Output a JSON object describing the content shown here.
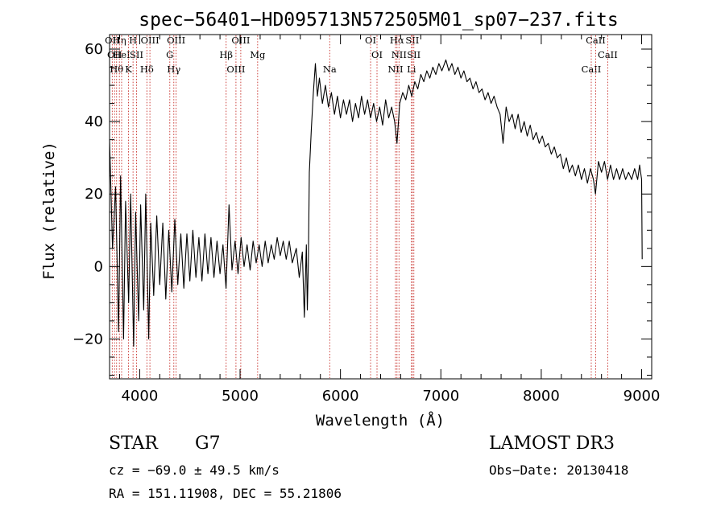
{
  "chart_data": {
    "type": "line",
    "title": "spec−56401−HD095713N572505M01_sp07−237.fits",
    "xlabel": "Wavelength (Å)",
    "ylabel": "Flux (relative)",
    "xlim": [
      3700,
      9100
    ],
    "ylim": [
      -31,
      64
    ],
    "xticks": [
      4000,
      5000,
      6000,
      7000,
      8000,
      9000
    ],
    "xtick_labels": [
      "4000",
      "5000",
      "6000",
      "7000",
      "8000",
      "9000"
    ],
    "yticks": [
      -20,
      0,
      20,
      40,
      60
    ],
    "ytick_labels": [
      "−20",
      "0",
      "20",
      "40",
      "60"
    ],
    "grid": false,
    "series": [
      {
        "points": [
          [
            3700,
            35
          ],
          [
            3730,
            5
          ],
          [
            3760,
            22
          ],
          [
            3790,
            -18
          ],
          [
            3810,
            25
          ],
          [
            3840,
            -20
          ],
          [
            3860,
            18
          ],
          [
            3890,
            -10
          ],
          [
            3910,
            20
          ],
          [
            3940,
            -22
          ],
          [
            3960,
            15
          ],
          [
            3990,
            -15
          ],
          [
            4010,
            17
          ],
          [
            4040,
            -12
          ],
          [
            4060,
            20
          ],
          [
            4090,
            -20
          ],
          [
            4110,
            12
          ],
          [
            4140,
            -8
          ],
          [
            4170,
            14
          ],
          [
            4200,
            -5
          ],
          [
            4230,
            12
          ],
          [
            4260,
            -9
          ],
          [
            4290,
            10
          ],
          [
            4320,
            -7
          ],
          [
            4350,
            13
          ],
          [
            4380,
            -5
          ],
          [
            4410,
            9
          ],
          [
            4440,
            -6
          ],
          [
            4470,
            9
          ],
          [
            4500,
            -4
          ],
          [
            4530,
            10
          ],
          [
            4560,
            -3
          ],
          [
            4590,
            8
          ],
          [
            4620,
            -4
          ],
          [
            4650,
            9
          ],
          [
            4680,
            -2
          ],
          [
            4710,
            8
          ],
          [
            4740,
            -3
          ],
          [
            4770,
            7
          ],
          [
            4800,
            -2
          ],
          [
            4830,
            6
          ],
          [
            4860,
            -6
          ],
          [
            4890,
            17
          ],
          [
            4920,
            -1
          ],
          [
            4950,
            7
          ],
          [
            4980,
            -2
          ],
          [
            5010,
            8
          ],
          [
            5040,
            0
          ],
          [
            5070,
            6
          ],
          [
            5100,
            -1
          ],
          [
            5130,
            7
          ],
          [
            5160,
            1
          ],
          [
            5190,
            6
          ],
          [
            5220,
            0
          ],
          [
            5250,
            7
          ],
          [
            5280,
            1
          ],
          [
            5310,
            6
          ],
          [
            5340,
            2
          ],
          [
            5370,
            8
          ],
          [
            5400,
            3
          ],
          [
            5430,
            7
          ],
          [
            5460,
            2
          ],
          [
            5490,
            7
          ],
          [
            5520,
            1
          ],
          [
            5560,
            5
          ],
          [
            5590,
            -3
          ],
          [
            5620,
            4
          ],
          [
            5640,
            -14
          ],
          [
            5660,
            6
          ],
          [
            5670,
            -12
          ],
          [
            5680,
            1
          ],
          [
            5690,
            26
          ],
          [
            5710,
            38
          ],
          [
            5730,
            48
          ],
          [
            5750,
            56
          ],
          [
            5770,
            47
          ],
          [
            5790,
            52
          ],
          [
            5820,
            45
          ],
          [
            5850,
            50
          ],
          [
            5880,
            44
          ],
          [
            5910,
            48
          ],
          [
            5940,
            42
          ],
          [
            5970,
            47
          ],
          [
            6000,
            41
          ],
          [
            6030,
            46
          ],
          [
            6060,
            42
          ],
          [
            6090,
            46
          ],
          [
            6120,
            40
          ],
          [
            6150,
            45
          ],
          [
            6180,
            41
          ],
          [
            6210,
            47
          ],
          [
            6240,
            42
          ],
          [
            6270,
            46
          ],
          [
            6300,
            41
          ],
          [
            6330,
            45
          ],
          [
            6360,
            40
          ],
          [
            6390,
            44
          ],
          [
            6420,
            39
          ],
          [
            6450,
            46
          ],
          [
            6480,
            41
          ],
          [
            6510,
            44
          ],
          [
            6540,
            40
          ],
          [
            6563,
            34
          ],
          [
            6590,
            45
          ],
          [
            6620,
            48
          ],
          [
            6650,
            46
          ],
          [
            6680,
            50
          ],
          [
            6710,
            47
          ],
          [
            6740,
            51
          ],
          [
            6770,
            49
          ],
          [
            6800,
            53
          ],
          [
            6830,
            51
          ],
          [
            6860,
            54
          ],
          [
            6890,
            52
          ],
          [
            6920,
            55
          ],
          [
            6950,
            53
          ],
          [
            6980,
            56
          ],
          [
            7010,
            54
          ],
          [
            7050,
            57
          ],
          [
            7080,
            54
          ],
          [
            7110,
            56
          ],
          [
            7140,
            53
          ],
          [
            7170,
            55
          ],
          [
            7200,
            52
          ],
          [
            7230,
            54
          ],
          [
            7260,
            51
          ],
          [
            7290,
            52
          ],
          [
            7320,
            49
          ],
          [
            7350,
            51
          ],
          [
            7380,
            48
          ],
          [
            7410,
            49
          ],
          [
            7440,
            46
          ],
          [
            7470,
            48
          ],
          [
            7500,
            45
          ],
          [
            7530,
            47
          ],
          [
            7560,
            44
          ],
          [
            7590,
            42
          ],
          [
            7620,
            34
          ],
          [
            7650,
            44
          ],
          [
            7680,
            40
          ],
          [
            7710,
            42
          ],
          [
            7740,
            38
          ],
          [
            7770,
            42
          ],
          [
            7800,
            37
          ],
          [
            7830,
            40
          ],
          [
            7860,
            36
          ],
          [
            7890,
            39
          ],
          [
            7920,
            35
          ],
          [
            7950,
            37
          ],
          [
            7980,
            34
          ],
          [
            8010,
            36
          ],
          [
            8040,
            33
          ],
          [
            8070,
            34
          ],
          [
            8100,
            31
          ],
          [
            8130,
            33
          ],
          [
            8160,
            30
          ],
          [
            8190,
            31
          ],
          [
            8220,
            27
          ],
          [
            8250,
            30
          ],
          [
            8280,
            26
          ],
          [
            8310,
            28
          ],
          [
            8340,
            25
          ],
          [
            8370,
            28
          ],
          [
            8400,
            24
          ],
          [
            8430,
            27
          ],
          [
            8460,
            23
          ],
          [
            8490,
            27
          ],
          [
            8520,
            24
          ],
          [
            8540,
            20
          ],
          [
            8570,
            29
          ],
          [
            8600,
            26
          ],
          [
            8630,
            29
          ],
          [
            8660,
            24
          ],
          [
            8690,
            28
          ],
          [
            8720,
            24
          ],
          [
            8750,
            27
          ],
          [
            8780,
            24
          ],
          [
            8810,
            27
          ],
          [
            8840,
            24
          ],
          [
            8870,
            26
          ],
          [
            8900,
            24
          ],
          [
            8930,
            27
          ],
          [
            8960,
            24
          ],
          [
            8980,
            28
          ],
          [
            9000,
            24
          ],
          [
            9005,
            2
          ]
        ]
      }
    ],
    "line_markers": [
      {
        "wavelength": 3727,
        "label": "OII"
      },
      {
        "wavelength": 3750,
        "label": "OII"
      },
      {
        "wavelength": 3770,
        "label": "Hθ"
      },
      {
        "wavelength": 3798,
        "label": "Hη"
      },
      {
        "wavelength": 3820,
        "label": "HeI"
      },
      {
        "wavelength": 3889,
        "label": "K"
      },
      {
        "wavelength": 3934,
        "label": "H"
      },
      {
        "wavelength": 3969,
        "label": "SII"
      },
      {
        "wavelength": 4072,
        "label": "Hδ"
      },
      {
        "wavelength": 4102,
        "label": "OIII"
      },
      {
        "wavelength": 4300,
        "label": "G"
      },
      {
        "wavelength": 4340,
        "label": "Hγ"
      },
      {
        "wavelength": 4363,
        "label": "OIII"
      },
      {
        "wavelength": 4861,
        "label": "Hβ"
      },
      {
        "wavelength": 4959,
        "label": "OIII"
      },
      {
        "wavelength": 5007,
        "label": "OIII"
      },
      {
        "wavelength": 5175,
        "label": "Mg"
      },
      {
        "wavelength": 5893,
        "label": "Na"
      },
      {
        "wavelength": 6300,
        "label": "OI"
      },
      {
        "wavelength": 6364,
        "label": "OI"
      },
      {
        "wavelength": 6548,
        "label": "NII"
      },
      {
        "wavelength": 6563,
        "label": "Hα"
      },
      {
        "wavelength": 6583,
        "label": "NII"
      },
      {
        "wavelength": 6707,
        "label": "Li"
      },
      {
        "wavelength": 6716,
        "label": "SII"
      },
      {
        "wavelength": 6731,
        "label": "SII"
      },
      {
        "wavelength": 8498,
        "label": "CaII"
      },
      {
        "wavelength": 8542,
        "label": "CaII"
      },
      {
        "wavelength": 8662,
        "label": "CaII"
      }
    ]
  },
  "info": {
    "object_class": "STAR",
    "subclass": "G7",
    "survey": "LAMOST DR3",
    "redshift_text": "cz = −69.0 ± 49.5 km/s",
    "obs_date_text": "Obs−Date: 20130418",
    "coords_text": "RA = 151.11908, DEC =  55.21806"
  }
}
